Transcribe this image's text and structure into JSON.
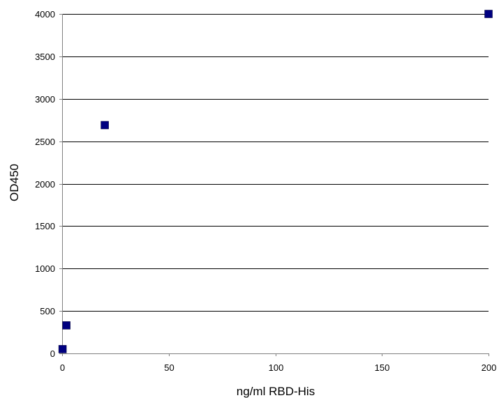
{
  "chart_data": {
    "type": "scatter",
    "title": "",
    "xlabel": "ng/ml RBD-His",
    "ylabel": "OD450",
    "xlim": [
      0,
      200
    ],
    "ylim": [
      0,
      4000
    ],
    "x_ticks": [
      0,
      50,
      100,
      150,
      200
    ],
    "y_ticks": [
      0,
      500,
      1000,
      1500,
      2000,
      2500,
      3000,
      3500,
      4000
    ],
    "grid": "horizontal",
    "legend": "none",
    "marker": "square",
    "marker_color": "#000080",
    "series": [
      {
        "points": [
          {
            "x": 0.2,
            "y": 50
          },
          {
            "x": 2,
            "y": 330
          },
          {
            "x": 20,
            "y": 2690
          },
          {
            "x": 200,
            "y": 4000
          }
        ]
      }
    ]
  }
}
